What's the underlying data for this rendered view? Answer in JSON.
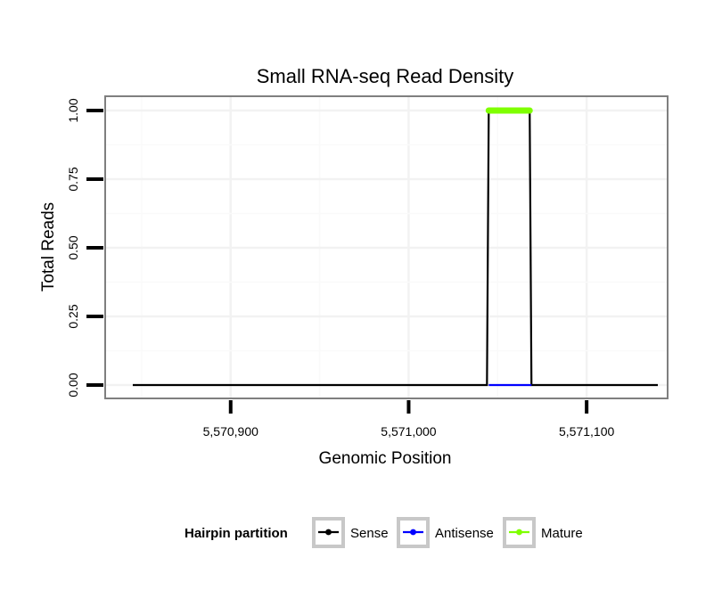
{
  "chart_data": {
    "type": "line",
    "title": "Small RNA-seq Read Density",
    "xlabel": "Genomic Position",
    "ylabel": "Total Reads",
    "xlim": [
      5570830,
      5571145
    ],
    "ylim": [
      -0.04,
      1.04
    ],
    "x_ticks": [
      5570900,
      5571000,
      5571100
    ],
    "x_tick_labels": [
      "5,570,900",
      "5,571,000",
      "5,571,100"
    ],
    "y_ticks": [
      0,
      0.25,
      0.5,
      0.75,
      1
    ],
    "y_tick_labels": [
      "0.00",
      "0.25",
      "0.50",
      "0.75",
      "1.00"
    ],
    "grid": true,
    "legend_position": "bottom",
    "legend_title": "Hairpin partition",
    "series": [
      {
        "name": "Sense",
        "color": "#000000",
        "x": [
          5570845,
          5571044,
          5571045,
          5571068,
          5571069,
          5571140
        ],
        "y": [
          0,
          0,
          1,
          1,
          0,
          0
        ]
      },
      {
        "name": "Antisense",
        "color": "#0000ff",
        "x": [
          5571045,
          5571069
        ],
        "y": [
          0,
          0
        ]
      },
      {
        "name": "Mature",
        "color": "#7fff00",
        "x": [
          5571045,
          5571068
        ],
        "y": [
          1,
          1
        ]
      }
    ]
  }
}
